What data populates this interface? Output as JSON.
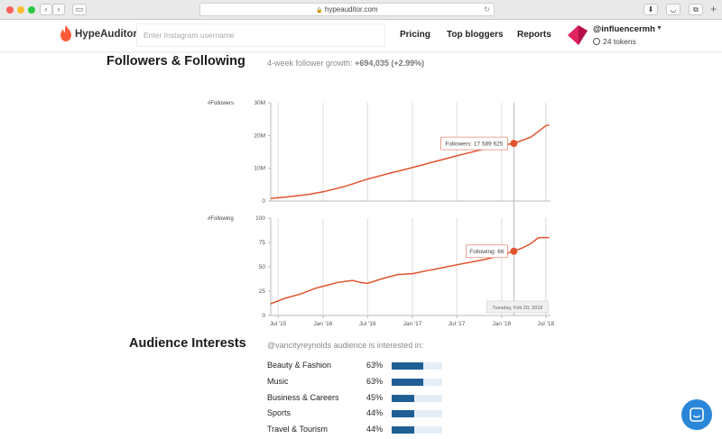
{
  "browser": {
    "url": "hypeauditor.com",
    "back": "‹",
    "forward": "›"
  },
  "header": {
    "brand": "HypeAuditor",
    "search_placeholder": "Enter Instagram username",
    "nav": [
      "Pricing",
      "Top bloggers",
      "Reports"
    ],
    "user": "@influencermh",
    "tokens": "24 tokens"
  },
  "followers_section": {
    "title": "Followers & Following",
    "growth_label": "4-week follower growth:",
    "growth_value": "+694,035 (+2.99%)"
  },
  "chart_data": [
    {
      "type": "line",
      "ylabel": "#Followers",
      "y_ticks": [
        "0",
        "10M",
        "20M",
        "30M"
      ],
      "ylim": [
        0,
        30000000
      ],
      "x_ticks": [
        "Jul '15",
        "Jan '16",
        "Jul '16",
        "Jan '17",
        "Jul '17",
        "Jan '18",
        "Jul '18"
      ],
      "series": [
        {
          "color": "#e2532d",
          "x": [
            "2015-06-01",
            "2015-08-01",
            "2015-11-01",
            "2016-01-01",
            "2016-04-01",
            "2016-07-01",
            "2016-10-01",
            "2017-01-01",
            "2017-04-01",
            "2017-07-01",
            "2017-10-01",
            "2018-01-01",
            "2018-02-20",
            "2018-05-01",
            "2018-07-01",
            "2018-07-15"
          ],
          "values": [
            800000,
            1200000,
            2000000,
            2800000,
            4500000,
            6700000,
            8500000,
            10200000,
            12000000,
            13800000,
            15500000,
            17000000,
            17589625,
            19500000,
            23000000,
            23200000
          ]
        }
      ],
      "tooltip": {
        "label": "Followers: 17 589 625",
        "x": "2018-02-20",
        "value": 17589625
      }
    },
    {
      "type": "line",
      "ylabel": "#Following",
      "y_ticks": [
        "0",
        "25",
        "50",
        "75",
        "100"
      ],
      "ylim": [
        0,
        100
      ],
      "x_ticks": [
        "Jul '15",
        "Jan '16",
        "Jul '16",
        "Jan '17",
        "Jul '17",
        "Jan '18",
        "Jul '18"
      ],
      "series": [
        {
          "color": "#e2532d",
          "x": [
            "2015-06-01",
            "2015-08-01",
            "2015-10-01",
            "2015-12-01",
            "2016-01-01",
            "2016-03-01",
            "2016-05-01",
            "2016-06-01",
            "2016-07-01",
            "2016-09-01",
            "2016-11-01",
            "2017-01-01",
            "2017-03-01",
            "2017-05-01",
            "2017-07-01",
            "2017-09-01",
            "2017-11-01",
            "2018-01-01",
            "2018-02-20",
            "2018-04-01",
            "2018-05-01",
            "2018-06-01",
            "2018-07-15"
          ],
          "values": [
            12,
            18,
            22,
            28,
            30,
            34,
            36,
            34,
            33,
            38,
            42,
            43,
            46,
            49,
            52,
            55,
            58,
            62,
            66,
            70,
            74,
            80,
            80
          ]
        }
      ],
      "tooltip": {
        "label": "Following: 66",
        "x": "2018-02-20",
        "value": 66
      },
      "date_label": "Tuesday, Feb 20, 2018"
    }
  ],
  "interests": {
    "title": "Audience Interests",
    "subtitle": "@vancityreynolds audience is interested in:",
    "items": [
      {
        "label": "Beauty & Fashion",
        "pct": "63%",
        "value": 0.63
      },
      {
        "label": "Music",
        "pct": "63%",
        "value": 0.63
      },
      {
        "label": "Business & Careers",
        "pct": "45%",
        "value": 0.45
      },
      {
        "label": "Sports",
        "pct": "44%",
        "value": 0.44
      },
      {
        "label": "Travel & Tourism",
        "pct": "44%",
        "value": 0.44
      }
    ]
  },
  "colors": {
    "line": "#e2532d",
    "bar": "#1f5f94",
    "bar_track": "#e6eef5",
    "chat": "#2a86d9",
    "brand": "#ff5b3a"
  }
}
